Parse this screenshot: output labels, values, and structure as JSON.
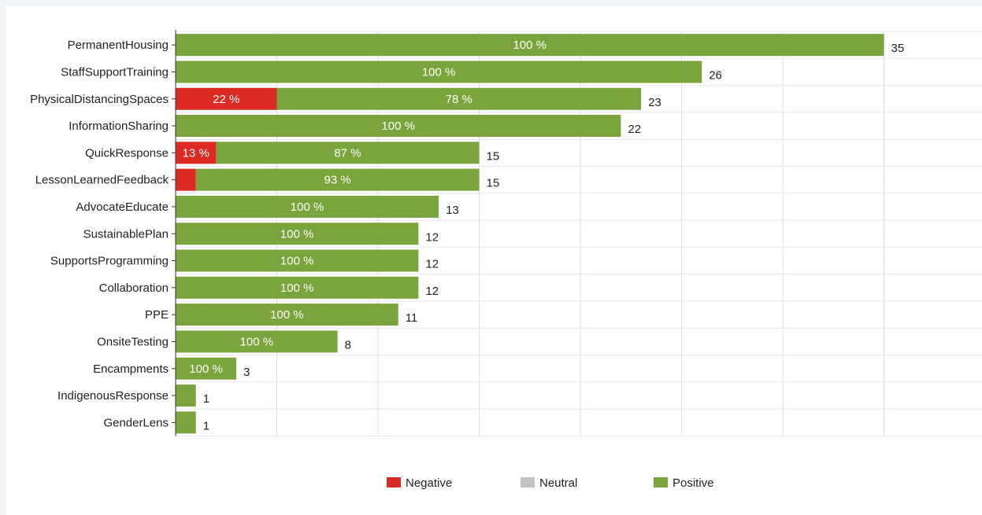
{
  "chart_data": {
    "type": "bar",
    "orientation": "horizontal",
    "stacked": true,
    "categories": [
      "PermanentHousing",
      "StaffSupportTraining",
      "PhysicalDistancingSpaces",
      "InformationSharing",
      "QuickResponse",
      "LessonLearnedFeedback",
      "AdvocateEducate",
      "SustainablePlan",
      "SupportsProgramming",
      "Collaboration",
      "PPE",
      "OnsiteTesting",
      "Encampments",
      "IndigenousResponse",
      "GenderLens"
    ],
    "series": [
      {
        "name": "Negative",
        "color": "#dc2a24",
        "values": [
          0,
          0,
          5,
          0,
          2,
          1,
          0,
          0,
          0,
          0,
          0,
          0,
          0,
          0,
          0
        ],
        "labels": [
          "",
          "",
          "22 %",
          "",
          "13 %",
          "",
          "",
          "",
          "",
          "",
          "",
          "",
          "",
          "",
          ""
        ]
      },
      {
        "name": "Neutral",
        "color": "#c3c3c3",
        "values": [
          0,
          0,
          0,
          0,
          0,
          0,
          0,
          0,
          0,
          0,
          0,
          0,
          0,
          0,
          0
        ],
        "labels": [
          "",
          "",
          "",
          "",
          "",
          "",
          "",
          "",
          "",
          "",
          "",
          "",
          "",
          "",
          ""
        ]
      },
      {
        "name": "Positive",
        "color": "#7aa43c",
        "values": [
          35,
          26,
          18,
          22,
          13,
          14,
          13,
          12,
          12,
          12,
          11,
          8,
          3,
          1,
          1
        ],
        "labels": [
          "100 %",
          "100 %",
          "78 %",
          "100 %",
          "87 %",
          "93 %",
          "100 %",
          "100 %",
          "100 %",
          "100 %",
          "100 %",
          "100 %",
          "100 %",
          "",
          ""
        ]
      }
    ],
    "totals": [
      "35",
      "26",
      "23",
      "22",
      "15",
      "15",
      "13",
      "12",
      "12",
      "12",
      "11",
      "8",
      "3",
      "1",
      "1"
    ],
    "xlim": [
      0,
      40
    ],
    "grid": true,
    "legend_position": "bottom-center",
    "title": "",
    "xlabel": "",
    "ylabel": ""
  }
}
